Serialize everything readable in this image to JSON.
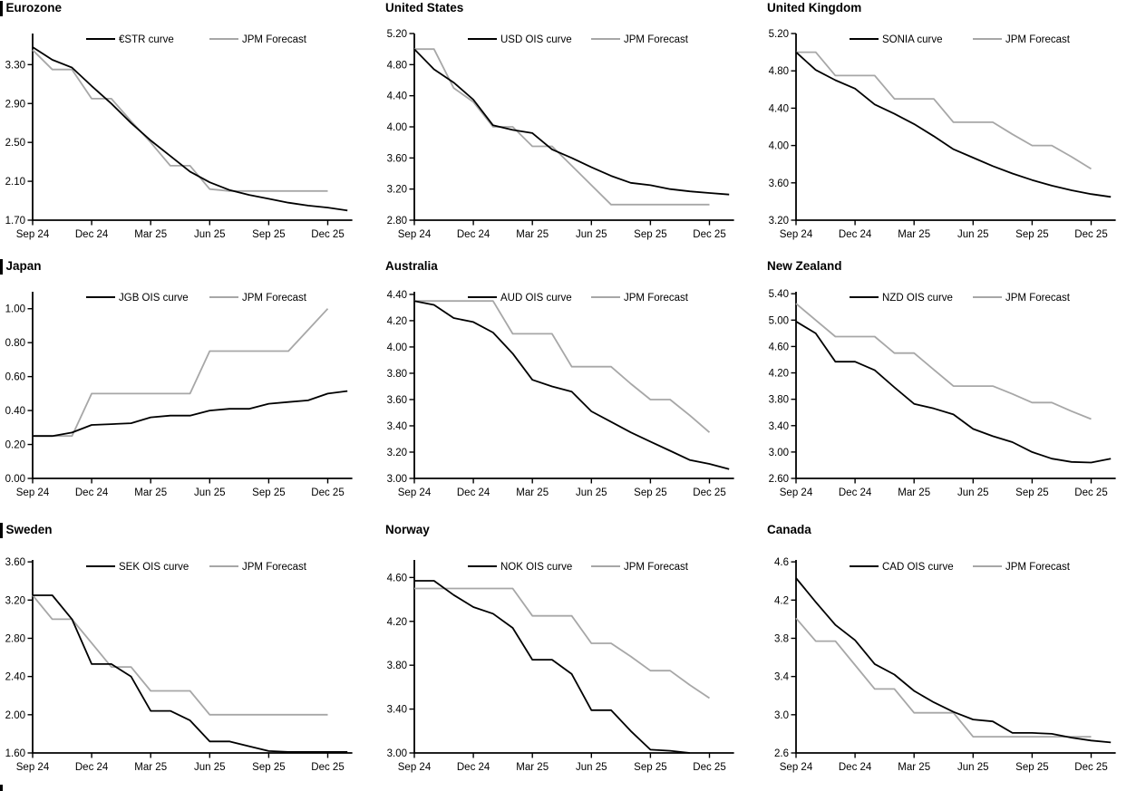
{
  "page": {
    "description": "Policy rate OIS curves vs JPM forecasts, nine regions",
    "accent_black": "#000000",
    "accent_gray": "#a7a7a7"
  },
  "chart_data": [
    {
      "type": "line",
      "title": "Eurozone",
      "section_bar": true,
      "x_tick_labels": [
        "Sep 24",
        "Dec 24",
        "Mar 25",
        "Jun 25",
        "Sep 25",
        "Dec 25"
      ],
      "x_months_total": 16.25,
      "ylim": [
        1.7,
        3.62
      ],
      "yticks": [
        1.7,
        2.1,
        2.5,
        2.9,
        3.3
      ],
      "ydecimals": 2,
      "grid": false,
      "legend_position": "top-inside",
      "series": [
        {
          "name": "€STR curve",
          "color": "#000000",
          "values": [
            3.48,
            3.35,
            3.27,
            3.08,
            2.9,
            2.7,
            2.52,
            2.36,
            2.2,
            2.09,
            2.01,
            1.96,
            1.92,
            1.88,
            1.85,
            1.83,
            1.8
          ]
        },
        {
          "name": "JPM Forecast",
          "color": "#a7a7a7",
          "values": [
            3.45,
            3.25,
            3.25,
            2.95,
            2.95,
            2.72,
            2.5,
            2.26,
            2.26,
            2.02,
            2.0,
            2.0,
            2.0,
            2.0,
            2.0,
            2.0
          ]
        }
      ]
    },
    {
      "type": "line",
      "title": "United States",
      "section_bar": false,
      "x_tick_labels": [
        "Sep 24",
        "Dec 24",
        "Mar 25",
        "Jun 25",
        "Sep 25",
        "Dec 25"
      ],
      "x_months_total": 16.25,
      "ylim": [
        2.8,
        5.2
      ],
      "yticks": [
        2.8,
        3.2,
        3.6,
        4.0,
        4.4,
        4.8,
        5.2
      ],
      "ydecimals": 2,
      "grid": false,
      "legend_position": "top-inside",
      "series": [
        {
          "name": "USD OIS curve",
          "color": "#000000",
          "values": [
            5.0,
            4.74,
            4.57,
            4.35,
            4.02,
            3.96,
            3.92,
            3.71,
            3.6,
            3.48,
            3.37,
            3.28,
            3.25,
            3.2,
            3.17,
            3.15,
            3.13
          ]
        },
        {
          "name": "JPM Forecast",
          "color": "#a7a7a7",
          "values": [
            5.0,
            5.0,
            4.5,
            4.32,
            4.0,
            4.0,
            3.75,
            3.75,
            3.5,
            3.25,
            3.0,
            3.0,
            3.0,
            3.0,
            3.0,
            3.0
          ]
        }
      ]
    },
    {
      "type": "line",
      "title": "United Kingdom",
      "section_bar": false,
      "x_tick_labels": [
        "Sep 24",
        "Dec 24",
        "Mar 25",
        "Jun 25",
        "Sep 25",
        "Dec 25"
      ],
      "x_months_total": 16.25,
      "ylim": [
        3.2,
        5.2
      ],
      "yticks": [
        3.2,
        3.6,
        4.0,
        4.4,
        4.8,
        5.2
      ],
      "ydecimals": 2,
      "grid": false,
      "legend_position": "top-inside",
      "series": [
        {
          "name": "SONIA curve",
          "color": "#000000",
          "values": [
            5.0,
            4.81,
            4.7,
            4.61,
            4.44,
            4.34,
            4.23,
            4.1,
            3.96,
            3.87,
            3.78,
            3.7,
            3.63,
            3.57,
            3.52,
            3.48,
            3.45
          ]
        },
        {
          "name": "JPM Forecast",
          "color": "#a7a7a7",
          "values": [
            5.0,
            5.0,
            4.75,
            4.75,
            4.75,
            4.5,
            4.5,
            4.5,
            4.25,
            4.25,
            4.25,
            4.12,
            4.0,
            4.0,
            3.88,
            3.75
          ]
        }
      ]
    },
    {
      "type": "line",
      "title": "Japan",
      "section_bar": true,
      "x_tick_labels": [
        "Sep 24",
        "Dec 24",
        "Mar 25",
        "Jun 25",
        "Sep 25",
        "Dec 25"
      ],
      "x_months_total": 16.25,
      "ylim": [
        0.0,
        1.1
      ],
      "yticks": [
        0.0,
        0.2,
        0.4,
        0.6,
        0.8,
        1.0
      ],
      "ydecimals": 2,
      "grid": false,
      "legend_position": "top-inside",
      "series": [
        {
          "name": "JGB OIS curve",
          "color": "#000000",
          "values": [
            0.25,
            0.25,
            0.27,
            0.315,
            0.32,
            0.325,
            0.36,
            0.37,
            0.37,
            0.4,
            0.41,
            0.41,
            0.44,
            0.45,
            0.46,
            0.5,
            0.515
          ]
        },
        {
          "name": "JPM Forecast",
          "color": "#a7a7a7",
          "values": [
            0.25,
            0.25,
            0.25,
            0.5,
            0.5,
            0.5,
            0.5,
            0.5,
            0.5,
            0.75,
            0.75,
            0.75,
            0.75,
            0.75,
            0.875,
            1.0
          ]
        }
      ]
    },
    {
      "type": "line",
      "title": "Australia",
      "section_bar": false,
      "x_tick_labels": [
        "Sep 24",
        "Dec 24",
        "Mar 25",
        "Jun 25",
        "Sep 25",
        "Dec 25"
      ],
      "x_months_total": 16.25,
      "ylim": [
        3.0,
        4.42
      ],
      "yticks": [
        3.0,
        3.2,
        3.4,
        3.6,
        3.8,
        4.0,
        4.2,
        4.4
      ],
      "ydecimals": 2,
      "grid": false,
      "legend_position": "top-inside",
      "series": [
        {
          "name": "AUD OIS curve",
          "color": "#000000",
          "values": [
            4.35,
            4.32,
            4.22,
            4.19,
            4.11,
            3.95,
            3.75,
            3.7,
            3.66,
            3.51,
            3.43,
            3.35,
            3.28,
            3.21,
            3.14,
            3.11,
            3.07
          ]
        },
        {
          "name": "JPM Forecast",
          "color": "#a7a7a7",
          "values": [
            4.35,
            4.35,
            4.35,
            4.35,
            4.35,
            4.1,
            4.1,
            4.1,
            3.85,
            3.85,
            3.85,
            3.72,
            3.6,
            3.6,
            3.48,
            3.35
          ]
        }
      ]
    },
    {
      "type": "line",
      "title": "New Zealand",
      "section_bar": false,
      "x_tick_labels": [
        "Sep 24",
        "Dec 24",
        "Mar 25",
        "Jun 25",
        "Sep 25",
        "Dec 25"
      ],
      "x_months_total": 16.25,
      "ylim": [
        2.6,
        5.43
      ],
      "yticks": [
        2.6,
        3.0,
        3.4,
        3.8,
        4.2,
        4.6,
        5.0,
        5.4
      ],
      "ydecimals": 2,
      "grid": false,
      "legend_position": "top-inside",
      "series": [
        {
          "name": "NZD OIS curve",
          "color": "#000000",
          "values": [
            4.98,
            4.8,
            4.37,
            4.37,
            4.24,
            3.98,
            3.73,
            3.66,
            3.57,
            3.35,
            3.24,
            3.15,
            3.0,
            2.9,
            2.85,
            2.84,
            2.9
          ]
        },
        {
          "name": "JPM Forecast",
          "color": "#a7a7a7",
          "values": [
            5.25,
            5.0,
            4.75,
            4.75,
            4.75,
            4.5,
            4.5,
            4.25,
            4.0,
            4.0,
            4.0,
            3.88,
            3.75,
            3.75,
            3.62,
            3.5
          ]
        }
      ]
    },
    {
      "type": "line",
      "title": "Sweden",
      "section_bar": true,
      "x_tick_labels": [
        "Sep 24",
        "Dec 24",
        "Mar 25",
        "Jun 25",
        "Sep 25",
        "Dec 25"
      ],
      "x_months_total": 16.25,
      "ylim": [
        1.6,
        3.62
      ],
      "yticks": [
        1.6,
        2.0,
        2.4,
        2.8,
        3.2,
        3.6
      ],
      "ydecimals": 2,
      "grid": false,
      "legend_position": "top-inside",
      "series": [
        {
          "name": "SEK OIS curve",
          "color": "#000000",
          "values": [
            3.25,
            3.25,
            3.0,
            2.53,
            2.53,
            2.4,
            2.04,
            2.04,
            1.94,
            1.72,
            1.72,
            1.67,
            1.62,
            1.61,
            1.61,
            1.61,
            1.61
          ]
        },
        {
          "name": "JPM Forecast",
          "color": "#a7a7a7",
          "values": [
            3.25,
            3.0,
            3.0,
            2.75,
            2.5,
            2.5,
            2.25,
            2.25,
            2.25,
            2.0,
            2.0,
            2.0,
            2.0,
            2.0,
            2.0,
            2.0
          ]
        }
      ]
    },
    {
      "type": "line",
      "title": "Norway",
      "section_bar": false,
      "x_tick_labels": [
        "Sep 24",
        "Dec 24",
        "Mar 25",
        "Jun 25",
        "Sep 25",
        "Dec 25"
      ],
      "x_months_total": 16.25,
      "ylim": [
        3.0,
        4.76
      ],
      "yticks": [
        3.0,
        3.4,
        3.8,
        4.2,
        4.6
      ],
      "ydecimals": 2,
      "grid": false,
      "legend_position": "top-inside",
      "series": [
        {
          "name": "NOK OIS curve",
          "color": "#000000",
          "values": [
            4.57,
            4.57,
            4.44,
            4.33,
            4.27,
            4.14,
            3.85,
            3.85,
            3.72,
            3.39,
            3.39,
            3.2,
            3.03,
            3.02,
            3.0
          ]
        },
        {
          "name": "JPM Forecast",
          "color": "#a7a7a7",
          "values": [
            4.5,
            4.5,
            4.5,
            4.5,
            4.5,
            4.5,
            4.25,
            4.25,
            4.25,
            4.0,
            4.0,
            3.88,
            3.75,
            3.75,
            3.62,
            3.5
          ]
        }
      ]
    },
    {
      "type": "line",
      "title": "Canada",
      "section_bar": false,
      "x_tick_labels": [
        "Sep 24",
        "Dec 24",
        "Mar 25",
        "Jun 25",
        "Sep 25",
        "Dec 25"
      ],
      "x_months_total": 16.25,
      "ylim": [
        2.6,
        4.62
      ],
      "yticks": [
        2.6,
        3.0,
        3.4,
        3.8,
        4.2,
        4.6
      ],
      "ydecimals": 1,
      "grid": false,
      "legend_position": "top-inside",
      "series": [
        {
          "name": "CAD OIS curve",
          "color": "#000000",
          "values": [
            4.43,
            4.18,
            3.94,
            3.78,
            3.53,
            3.42,
            3.25,
            3.13,
            3.03,
            2.95,
            2.93,
            2.81,
            2.81,
            2.8,
            2.76,
            2.73,
            2.71
          ]
        },
        {
          "name": "JPM Forecast",
          "color": "#a7a7a7",
          "values": [
            4.01,
            3.77,
            3.77,
            3.52,
            3.27,
            3.27,
            3.02,
            3.02,
            3.02,
            2.77,
            2.77,
            2.77,
            2.77,
            2.77,
            2.77,
            2.77
          ]
        }
      ]
    }
  ]
}
